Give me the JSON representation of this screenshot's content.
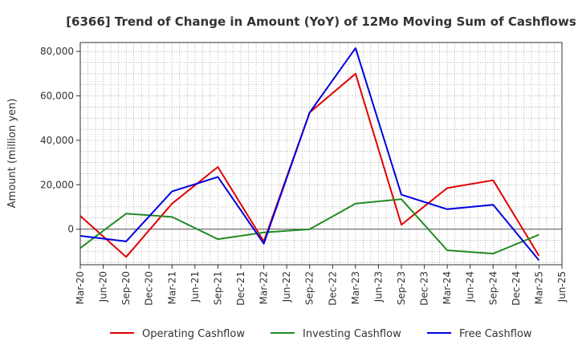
{
  "chart_data": {
    "type": "line",
    "title": "[6366]  Trend of Change in Amount (YoY) of 12Mo Moving Sum of Cashflows",
    "xlabel": "",
    "ylabel": "Amount (million yen)",
    "ylim": [
      -16000,
      84000
    ],
    "yticks": [
      0,
      20000,
      40000,
      60000,
      80000
    ],
    "ytick_labels": [
      "0",
      "20,000",
      "40,000",
      "60,000",
      "80,000"
    ],
    "categories": [
      "Mar-20",
      "Jun-20",
      "Sep-20",
      "Dec-20",
      "Mar-21",
      "Jun-21",
      "Sep-21",
      "Dec-21",
      "Mar-22",
      "Jun-22",
      "Sep-22",
      "Dec-22",
      "Mar-23",
      "Jun-23",
      "Sep-23",
      "Dec-23",
      "Mar-24",
      "Jun-24",
      "Sep-24",
      "Dec-24",
      "Mar-25",
      "Jun-25"
    ],
    "grid": true,
    "legend_position": "bottom",
    "series": [
      {
        "name": "Operating Cashflow",
        "color": "#e00000",
        "values": [
          6000,
          null,
          -12500,
          null,
          11500,
          null,
          28000,
          null,
          -5500,
          null,
          52500,
          null,
          70000,
          null,
          2000,
          null,
          18500,
          null,
          22000,
          null,
          -12000,
          null
        ]
      },
      {
        "name": "Investing Cashflow",
        "color": "#228b22",
        "values": [
          -8500,
          null,
          7000,
          null,
          5500,
          null,
          -4500,
          null,
          -1500,
          null,
          0,
          null,
          11500,
          null,
          13500,
          null,
          -9500,
          null,
          -11000,
          null,
          -2500,
          null
        ]
      },
      {
        "name": "Free Cashflow",
        "color": "#0000dd",
        "values": [
          -3000,
          null,
          -5500,
          null,
          17000,
          null,
          23500,
          null,
          -6500,
          null,
          52500,
          null,
          81500,
          null,
          15500,
          null,
          9000,
          null,
          11000,
          null,
          -14000,
          null
        ]
      }
    ]
  }
}
